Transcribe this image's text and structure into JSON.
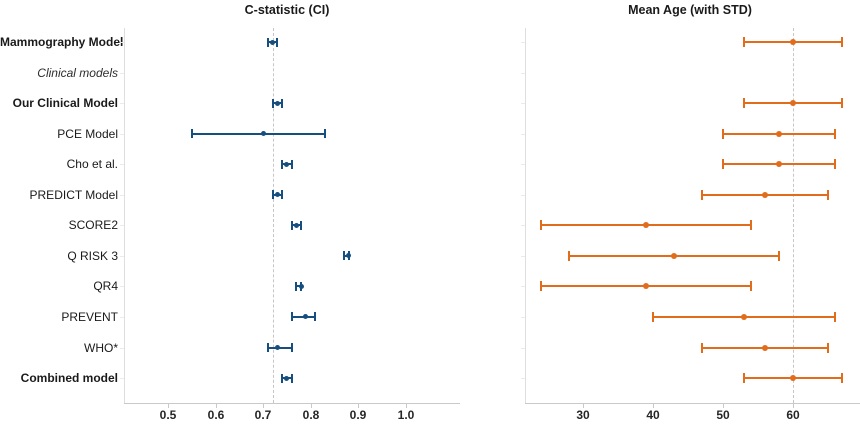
{
  "chart_data": {
    "type": "scatter",
    "subtype": "forest-plot-errorbars",
    "legend": "none",
    "grid": "off",
    "rows": [
      {
        "label": "Mammography Model",
        "emphasis": "bold"
      },
      {
        "label": "Clinical models",
        "emphasis": "italic"
      },
      {
        "label": "Our Clinical Model",
        "emphasis": "bold"
      },
      {
        "label": "PCE Model",
        "emphasis": "normal"
      },
      {
        "label": "Cho et al.",
        "emphasis": "normal"
      },
      {
        "label": "PREDICT Model",
        "emphasis": "normal"
      },
      {
        "label": "SCORE2",
        "emphasis": "normal"
      },
      {
        "label": "Q RISK 3",
        "emphasis": "normal"
      },
      {
        "label": "QR4",
        "emphasis": "normal"
      },
      {
        "label": "PREVENT",
        "emphasis": "normal"
      },
      {
        "label": "WHO*",
        "emphasis": "normal"
      },
      {
        "label": "Combined model",
        "emphasis": "bold"
      }
    ],
    "panels": [
      {
        "title": "C-statistic (CI)",
        "color": "#164f7f",
        "x_ticks": [
          0.5,
          0.6,
          0.7,
          0.8,
          0.9,
          1.0
        ],
        "x_tick_labels": [
          "0.5",
          "0.6",
          "0.7",
          "0.8",
          "0.9",
          "1.0"
        ],
        "reference_line": 0.72,
        "values": [
          {
            "mean": 0.72,
            "lo": 0.71,
            "hi": 0.73
          },
          null,
          {
            "mean": 0.73,
            "lo": 0.72,
            "hi": 0.74
          },
          {
            "mean": 0.7,
            "lo": 0.55,
            "hi": 0.83
          },
          {
            "mean": 0.75,
            "lo": 0.74,
            "hi": 0.76
          },
          {
            "mean": 0.73,
            "lo": 0.72,
            "hi": 0.74
          },
          {
            "mean": 0.77,
            "lo": 0.76,
            "hi": 0.78
          },
          {
            "mean": 0.88,
            "lo": 0.87,
            "hi": 0.88
          },
          {
            "mean": 0.78,
            "lo": 0.77,
            "hi": 0.78
          },
          {
            "mean": 0.79,
            "lo": 0.76,
            "hi": 0.81
          },
          {
            "mean": 0.73,
            "lo": 0.71,
            "hi": 0.76
          },
          {
            "mean": 0.75,
            "lo": 0.74,
            "hi": 0.76
          }
        ]
      },
      {
        "title": "Mean Age (with STD)",
        "color": "#e06c1c",
        "x_ticks": [
          30,
          40,
          50,
          60
        ],
        "x_tick_labels": [
          "30",
          "40",
          "50",
          "60"
        ],
        "reference_line": 60,
        "values": [
          {
            "mean": 60,
            "lo": 53,
            "hi": 67
          },
          null,
          {
            "mean": 60,
            "lo": 53,
            "hi": 67
          },
          {
            "mean": 58,
            "lo": 50,
            "hi": 66
          },
          {
            "mean": 58,
            "lo": 50,
            "hi": 66
          },
          {
            "mean": 56,
            "lo": 47,
            "hi": 65
          },
          {
            "mean": 39,
            "lo": 24,
            "hi": 54
          },
          {
            "mean": 43,
            "lo": 28,
            "hi": 58
          },
          {
            "mean": 39,
            "lo": 24,
            "hi": 54
          },
          {
            "mean": 53,
            "lo": 40,
            "hi": 66
          },
          {
            "mean": 56,
            "lo": 47,
            "hi": 65
          },
          {
            "mean": 60,
            "lo": 53,
            "hi": 67
          }
        ]
      }
    ]
  }
}
